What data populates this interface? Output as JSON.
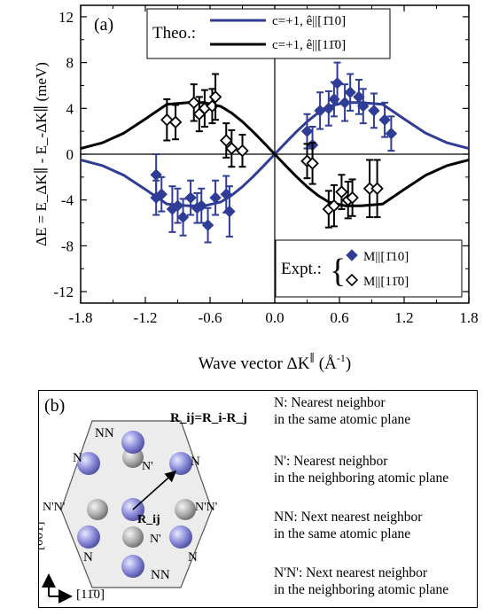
{
  "chart_data": {
    "type": "scatter",
    "panel_label": "(a)",
    "xlabel": "Wave vector ΔK",
    "xlabel_super": "∥",
    "xlabel_unit": " (Å",
    "xlabel_unit_exp": "-1",
    "xlabel_tail": ")",
    "ylabel": "ΔE = E_ΔK∥ - E_-ΔK∥ (meV)",
    "xlim": [
      -1.8,
      1.8
    ],
    "ylim": [
      -13,
      13
    ],
    "xticks": [
      "-1.8",
      "-1.2",
      "-0.6",
      "0.0",
      "0.6",
      "1.2",
      "1.8"
    ],
    "yticks": [
      "12",
      "8",
      "4",
      "0",
      "-4",
      "-8",
      "-12"
    ],
    "grid": false,
    "legend_theory": {
      "title": "Theo.:",
      "entries": [
        {
          "label": "c=+1, ê||[1̄10]",
          "color": "#2f3d97"
        },
        {
          "label": "c=+1, ê||[11̄0]",
          "color": "#000000"
        }
      ]
    },
    "legend_expt": {
      "title": "Expt.:",
      "entries": [
        {
          "label": "M||[1̄10]",
          "marker": "filled-diamond",
          "color": "#2f3d97"
        },
        {
          "label": "M||[11̄0]",
          "marker": "open-diamond",
          "color": "#000000"
        }
      ]
    },
    "theory": {
      "amplitude_meV": 4.5,
      "peak_at_invA": 0.65,
      "x": [
        -1.8,
        -1.6,
        -1.4,
        -1.2,
        -1.0,
        -0.8,
        -0.65,
        -0.5,
        -0.4,
        -0.3,
        -0.2,
        -0.1,
        0.0,
        0.1,
        0.2,
        0.3,
        0.4,
        0.5,
        0.65,
        0.8,
        1.0,
        1.2,
        1.4,
        1.6,
        1.8
      ],
      "series": [
        {
          "name": "c=+1, ê||[1̄10]",
          "color": "#2f3d97",
          "y": [
            -0.5,
            -0.99,
            -1.84,
            -3.08,
            -4.35,
            -4.5,
            -4.5,
            -4.17,
            -3.6,
            -2.84,
            -1.95,
            -0.99,
            0.0,
            0.99,
            1.95,
            2.84,
            3.6,
            4.17,
            4.5,
            4.5,
            4.35,
            3.08,
            1.84,
            0.99,
            0.5
          ]
        },
        {
          "name": "c=+1, ê||[11̄0]",
          "color": "#000000",
          "y": [
            0.5,
            0.99,
            1.84,
            3.08,
            4.35,
            4.5,
            4.5,
            4.17,
            3.6,
            2.84,
            1.95,
            0.99,
            0.0,
            -0.99,
            -1.95,
            -2.84,
            -3.6,
            -4.17,
            -4.5,
            -4.5,
            -4.35,
            -3.08,
            -1.84,
            -0.99,
            -0.5
          ]
        }
      ]
    },
    "experiment": [
      {
        "name": "M||[1̄10]",
        "marker": "filled-diamond",
        "color": "#2f3d97",
        "points": [
          {
            "x": -1.1,
            "y": -1.8,
            "err": 1.8
          },
          {
            "x": -1.1,
            "y": -3.8,
            "err": 1.5
          },
          {
            "x": -1.05,
            "y": -3.5,
            "err": 1.5
          },
          {
            "x": -0.95,
            "y": -4.8,
            "err": 2.0
          },
          {
            "x": -0.9,
            "y": -4.5,
            "err": 1.5
          },
          {
            "x": -0.85,
            "y": -5.5,
            "err": 1.6
          },
          {
            "x": -0.78,
            "y": -3.8,
            "err": 1.5
          },
          {
            "x": -0.72,
            "y": -4.7,
            "err": 1.3
          },
          {
            "x": -0.68,
            "y": -4.5,
            "err": 1.5
          },
          {
            "x": -0.62,
            "y": -6.2,
            "err": 1.5
          },
          {
            "x": -0.55,
            "y": -3.8,
            "err": 1.5
          },
          {
            "x": -0.45,
            "y": -3.5,
            "err": 1.6
          },
          {
            "x": -0.42,
            "y": -5.0,
            "err": 2.2
          },
          {
            "x": 0.3,
            "y": 2.0,
            "err": 1.5
          },
          {
            "x": 0.35,
            "y": 0.8,
            "err": 1.6
          },
          {
            "x": 0.42,
            "y": 3.8,
            "err": 1.6
          },
          {
            "x": 0.5,
            "y": 4.0,
            "err": 1.5
          },
          {
            "x": 0.55,
            "y": 4.8,
            "err": 1.5
          },
          {
            "x": 0.58,
            "y": 6.2,
            "err": 1.8
          },
          {
            "x": 0.65,
            "y": 4.5,
            "err": 1.6
          },
          {
            "x": 0.7,
            "y": 5.4,
            "err": 1.6
          },
          {
            "x": 0.78,
            "y": 5.0,
            "err": 1.5
          },
          {
            "x": 0.82,
            "y": 4.2,
            "err": 1.5
          },
          {
            "x": 0.92,
            "y": 3.8,
            "err": 1.5
          },
          {
            "x": 1.02,
            "y": 3.0,
            "err": 1.5
          },
          {
            "x": 1.08,
            "y": 1.8,
            "err": 1.5
          }
        ]
      },
      {
        "name": "M||[11̄0]",
        "marker": "open-diamond",
        "color": "#000000",
        "points": [
          {
            "x": -1.0,
            "y": 3.0,
            "err": 1.8
          },
          {
            "x": -0.92,
            "y": 2.8,
            "err": 1.5
          },
          {
            "x": -0.75,
            "y": 4.5,
            "err": 1.6
          },
          {
            "x": -0.7,
            "y": 3.5,
            "err": 1.5
          },
          {
            "x": -0.65,
            "y": 4.0,
            "err": 1.6
          },
          {
            "x": -0.58,
            "y": 4.2,
            "err": 1.5
          },
          {
            "x": -0.55,
            "y": 5.0,
            "err": 2.0
          },
          {
            "x": -0.45,
            "y": 1.2,
            "err": 1.5
          },
          {
            "x": -0.4,
            "y": 0.5,
            "err": 1.6
          },
          {
            "x": -0.3,
            "y": 0.3,
            "err": 1.4
          },
          {
            "x": 0.3,
            "y": -0.6,
            "err": 1.5
          },
          {
            "x": 0.35,
            "y": -0.8,
            "err": 1.8
          },
          {
            "x": 0.5,
            "y": -4.8,
            "err": 1.6
          },
          {
            "x": 0.55,
            "y": -4.5,
            "err": 1.8
          },
          {
            "x": 0.62,
            "y": -3.3,
            "err": 1.5
          },
          {
            "x": 0.68,
            "y": -4.0,
            "err": 1.6
          },
          {
            "x": 0.72,
            "y": -3.8,
            "err": 1.6
          },
          {
            "x": 0.88,
            "y": -3.0,
            "err": 2.5
          },
          {
            "x": 0.95,
            "y": -3.0,
            "err": 2.5
          }
        ]
      }
    ]
  },
  "panel_b": {
    "label": "(b)",
    "formula": "R_ij=R_i-R_j",
    "lattice_labels": {
      "nn": "NN",
      "n": "N",
      "n_prime": "N'",
      "nn_prime": "N'N'",
      "r_ij": "R_ij"
    },
    "axes": {
      "vertical": "[001]",
      "horizontal": "[11̄0]"
    },
    "definitions": [
      {
        "term": "N",
        "line1": "N: Nearest neighbor",
        "line2": "in the same atomic plane"
      },
      {
        "term": "N'",
        "line1": "N': Nearest neighbor",
        "line2": "in the neighboring atomic plane"
      },
      {
        "term": "NN",
        "line1": "NN: Next nearest neighbor",
        "line2": "in the same atomic plane"
      },
      {
        "term": "N'N'",
        "line1": "N'N': Next nearest neighbor",
        "line2": "in the neighboring atomic plane"
      }
    ]
  },
  "colors": {
    "blue": "#2f3d97",
    "atom_purple": "#8c8ddb",
    "atom_gray": "#9a9a9a"
  }
}
